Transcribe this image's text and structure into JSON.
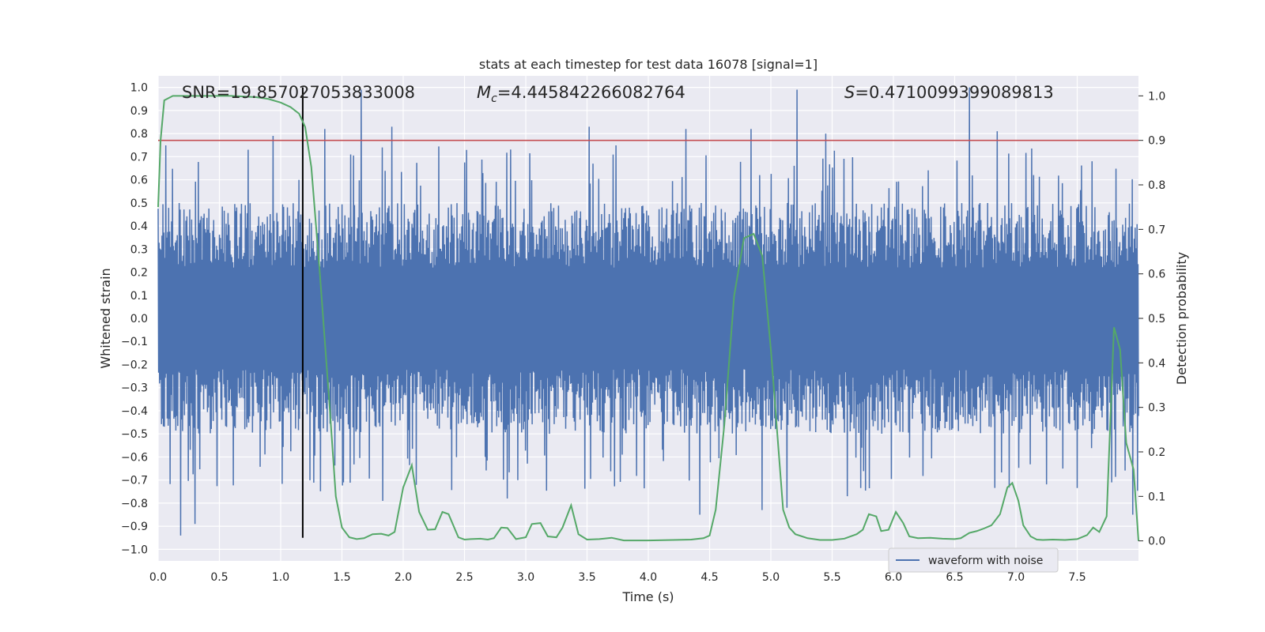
{
  "chart_data": {
    "type": "line",
    "title": "stats at each timestep for test data 16078 [signal=1]",
    "xlabel": "Time (s)",
    "ylabel": "Whitened strain",
    "y2label": "Detection probability",
    "xlim": [
      0,
      8
    ],
    "ylim": [
      -1.05,
      1.05
    ],
    "y2lim": [
      -0.045,
      1.045
    ],
    "x_ticks": [
      0.0,
      0.5,
      1.0,
      1.5,
      2.0,
      2.5,
      3.0,
      3.5,
      4.0,
      4.5,
      5.0,
      5.5,
      6.0,
      6.5,
      7.0,
      7.5
    ],
    "x_tick_labels": [
      "0.0",
      "0.5",
      "1.0",
      "1.5",
      "2.0",
      "2.5",
      "3.0",
      "3.5",
      "4.0",
      "4.5",
      "5.0",
      "5.5",
      "6.0",
      "6.5",
      "7.0",
      "7.5"
    ],
    "y_ticks": [
      1.0,
      0.9,
      0.8,
      0.7,
      0.6,
      0.5,
      0.4,
      0.3,
      0.2,
      0.1,
      0.0,
      -0.1,
      -0.2,
      -0.3,
      -0.4,
      -0.5,
      -0.6,
      -0.7,
      -0.8,
      -0.9,
      -1.0
    ],
    "y_tick_labels": [
      "1.0",
      "0.9",
      "0.8",
      "0.7",
      "0.6",
      "0.5",
      "0.4",
      "0.3",
      "0.2",
      "0.1",
      "0.0",
      "−0.1",
      "−0.2",
      "−0.3",
      "−0.4",
      "−0.5",
      "−0.6",
      "−0.7",
      "−0.8",
      "−0.9",
      "−1.0"
    ],
    "y2_ticks": [
      1.0,
      0.9,
      0.8,
      0.7,
      0.6,
      0.5,
      0.4,
      0.3,
      0.2,
      0.1,
      0.0
    ],
    "y2_tick_labels": [
      "1.0",
      "0.9",
      "0.8",
      "0.7",
      "0.6",
      "0.5",
      "0.4",
      "0.3",
      "0.2",
      "0.1",
      "0.0"
    ],
    "grid": true,
    "background": "#eaeaf2",
    "annotations": {
      "snr": "SNR=19.857027053833008",
      "mc_symbol": "M",
      "mc_sub": "c",
      "mc_value": "=4.445842266082764",
      "s_symbol": "S",
      "s_value": "=0.4710099399089813"
    },
    "threshold": {
      "value": 0.9,
      "axis": "right",
      "color": "#c44e52"
    },
    "marker_line": {
      "x": 1.18,
      "y_range": [
        -0.95,
        1.0
      ],
      "color": "#000000"
    },
    "waveform": {
      "name": "waveform with noise",
      "color": "#4c72b0",
      "samples": 2048,
      "envelope_pos_typical": 0.4,
      "envelope_neg_typical": -0.4,
      "spikes": [
        {
          "x": 1.66,
          "y": 0.99
        },
        {
          "x": 5.21,
          "y": 0.99
        },
        {
          "x": 6.62,
          "y": 1.0
        },
        {
          "x": 0.94,
          "y": 0.79
        },
        {
          "x": 1.36,
          "y": 0.82
        },
        {
          "x": 1.91,
          "y": 0.83
        },
        {
          "x": 3.52,
          "y": 0.83
        },
        {
          "x": 4.31,
          "y": 0.82
        },
        {
          "x": 4.84,
          "y": 0.82
        },
        {
          "x": 5.45,
          "y": 0.8
        },
        {
          "x": 6.85,
          "y": 0.81
        },
        {
          "x": 0.18,
          "y": -0.94
        },
        {
          "x": 0.3,
          "y": -0.89
        },
        {
          "x": 4.42,
          "y": -0.85
        },
        {
          "x": 4.93,
          "y": -0.83
        },
        {
          "x": 5.13,
          "y": -0.82
        },
        {
          "x": 7.95,
          "y": -0.85
        },
        {
          "x": 1.83,
          "y": -0.79
        },
        {
          "x": 2.85,
          "y": -0.78
        },
        {
          "x": 5.62,
          "y": -0.77
        }
      ]
    },
    "detection_probability": {
      "color": "#55a868",
      "x": [
        0.0,
        0.02,
        0.05,
        0.12,
        0.3,
        0.6,
        0.8,
        0.9,
        1.0,
        1.08,
        1.15,
        1.2,
        1.25,
        1.32,
        1.4,
        1.45,
        1.5,
        1.56,
        1.62,
        1.68,
        1.75,
        1.82,
        1.88,
        1.93,
        2.0,
        2.07,
        2.13,
        2.2,
        2.26,
        2.32,
        2.37,
        2.45,
        2.5,
        2.55,
        2.63,
        2.69,
        2.74,
        2.8,
        2.85,
        2.92,
        3.0,
        3.05,
        3.12,
        3.18,
        3.25,
        3.3,
        3.37,
        3.43,
        3.5,
        3.6,
        3.7,
        3.8,
        4.0,
        4.2,
        4.35,
        4.45,
        4.5,
        4.55,
        4.62,
        4.7,
        4.78,
        4.86,
        4.93,
        5.0,
        5.05,
        5.1,
        5.15,
        5.2,
        5.3,
        5.4,
        5.5,
        5.6,
        5.7,
        5.75,
        5.8,
        5.86,
        5.9,
        5.96,
        6.02,
        6.08,
        6.13,
        6.2,
        6.3,
        6.4,
        6.5,
        6.55,
        6.62,
        6.68,
        6.74,
        6.8,
        6.87,
        6.93,
        6.97,
        7.02,
        7.06,
        7.12,
        7.17,
        7.22,
        7.3,
        7.4,
        7.5,
        7.58,
        7.63,
        7.68,
        7.74,
        7.8,
        7.85,
        7.9,
        7.96,
        8.0
      ],
      "y": [
        0.75,
        0.9,
        0.99,
        1.0,
        1.0,
        1.0,
        0.997,
        0.993,
        0.985,
        0.975,
        0.96,
        0.93,
        0.84,
        0.6,
        0.3,
        0.1,
        0.03,
        0.008,
        0.004,
        0.006,
        0.015,
        0.016,
        0.012,
        0.02,
        0.12,
        0.17,
        0.065,
        0.025,
        0.026,
        0.065,
        0.06,
        0.008,
        0.003,
        0.004,
        0.005,
        0.003,
        0.006,
        0.03,
        0.029,
        0.004,
        0.008,
        0.038,
        0.04,
        0.01,
        0.008,
        0.03,
        0.08,
        0.015,
        0.003,
        0.004,
        0.007,
        0.001,
        0.001,
        0.002,
        0.003,
        0.006,
        0.012,
        0.07,
        0.26,
        0.55,
        0.68,
        0.69,
        0.64,
        0.43,
        0.25,
        0.07,
        0.03,
        0.015,
        0.006,
        0.002,
        0.002,
        0.005,
        0.015,
        0.025,
        0.06,
        0.055,
        0.022,
        0.025,
        0.065,
        0.04,
        0.01,
        0.006,
        0.007,
        0.005,
        0.004,
        0.006,
        0.018,
        0.022,
        0.028,
        0.035,
        0.06,
        0.12,
        0.13,
        0.09,
        0.035,
        0.01,
        0.003,
        0.002,
        0.003,
        0.002,
        0.004,
        0.013,
        0.03,
        0.02,
        0.055,
        0.48,
        0.43,
        0.22,
        0.16,
        0.0
      ]
    },
    "legend": {
      "position": "bottom-right",
      "label": "waveform with noise"
    }
  }
}
